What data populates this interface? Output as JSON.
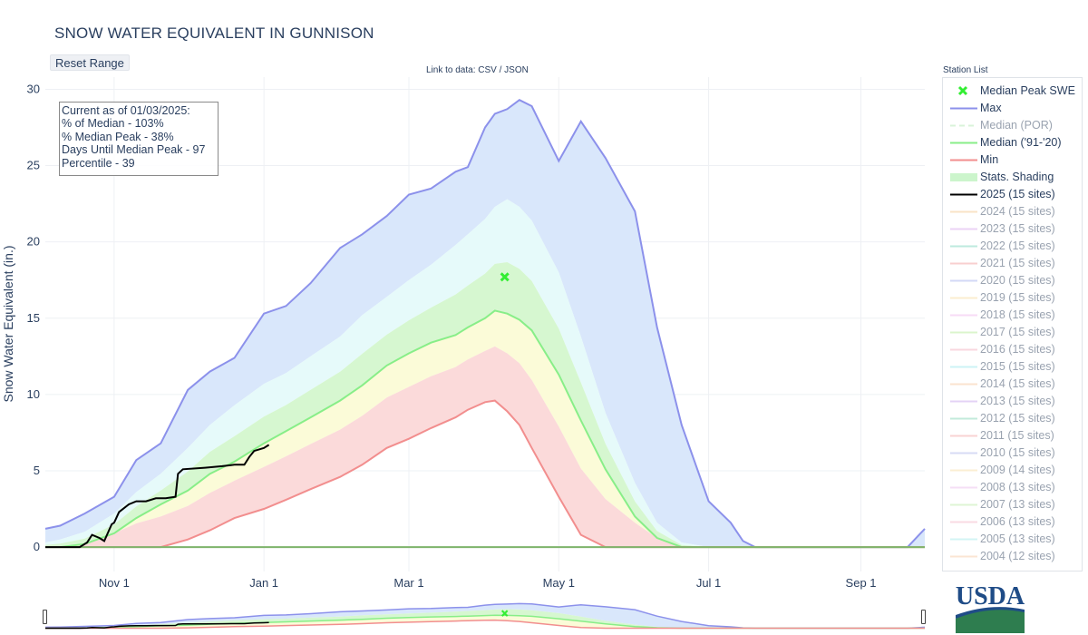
{
  "title": "SNOW WATER EQUIVALENT IN GUNNISON",
  "reset_label": "Reset Range",
  "link_prefix": "Link to data:",
  "link_csv": "CSV",
  "link_sep": "/",
  "link_json": "JSON",
  "station_list_label": "Station List",
  "info_box": {
    "line1": "Current as of 01/03/2025:",
    "line2": "% of Median - 103%",
    "line3": "% Median Peak - 38%",
    "line4": "Days Until Median Peak - 97",
    "line5": "Percentile - 39"
  },
  "legend": [
    {
      "label": "Median Peak SWE",
      "color": "#33ee33",
      "style": "marker",
      "active": true
    },
    {
      "label": "Max",
      "color": "#8c91eb",
      "style": "line",
      "active": true
    },
    {
      "label": "Median (POR)",
      "color": "#b5e8b5",
      "style": "dash",
      "active": false
    },
    {
      "label": "Median ('91-'20)",
      "color": "#88ee88",
      "style": "line",
      "active": true
    },
    {
      "label": "Min",
      "color": "#f28e8e",
      "style": "line",
      "active": true
    },
    {
      "label": "Stats. Shading",
      "color": "#ccf5cc",
      "style": "band",
      "active": true
    },
    {
      "label": "2025 (15 sites)",
      "color": "#000000",
      "style": "line",
      "active": true
    },
    {
      "label": "2024 (15 sites)",
      "color": "#f5c88e",
      "style": "line",
      "active": false
    },
    {
      "label": "2023 (15 sites)",
      "color": "#d8a8ef",
      "style": "line",
      "active": false
    },
    {
      "label": "2022 (15 sites)",
      "color": "#7fd6be",
      "style": "line",
      "active": false
    },
    {
      "label": "2021 (15 sites)",
      "color": "#f2a0a0",
      "style": "line",
      "active": false
    },
    {
      "label": "2020 (15 sites)",
      "color": "#a8b2ef",
      "style": "line",
      "active": false
    },
    {
      "label": "2019 (15 sites)",
      "color": "#f8dca0",
      "style": "line",
      "active": false
    },
    {
      "label": "2018 (15 sites)",
      "color": "#f0b8ef",
      "style": "line",
      "active": false
    },
    {
      "label": "2017 (15 sites)",
      "color": "#b8ec9a",
      "style": "line",
      "active": false
    },
    {
      "label": "2016 (15 sites)",
      "color": "#f5b0c0",
      "style": "line",
      "active": false
    },
    {
      "label": "2015 (15 sites)",
      "color": "#9ae8ec",
      "style": "line",
      "active": false
    },
    {
      "label": "2014 (15 sites)",
      "color": "#f8c8a0",
      "style": "line",
      "active": false
    },
    {
      "label": "2013 (15 sites)",
      "color": "#cba8ef",
      "style": "line",
      "active": false
    },
    {
      "label": "2012 (15 sites)",
      "color": "#88d8b8",
      "style": "line",
      "active": false
    },
    {
      "label": "2011 (15 sites)",
      "color": "#f2a8a8",
      "style": "line",
      "active": false
    },
    {
      "label": "2010 (15 sites)",
      "color": "#b0b8ec",
      "style": "line",
      "active": false
    },
    {
      "label": "2009 (14 sites)",
      "color": "#f8e0a8",
      "style": "line",
      "active": false
    },
    {
      "label": "2008 (13 sites)",
      "color": "#ecc0ef",
      "style": "line",
      "active": false
    },
    {
      "label": "2007 (13 sites)",
      "color": "#c0ecaa",
      "style": "line",
      "active": false
    },
    {
      "label": "2006 (13 sites)",
      "color": "#f5b8c8",
      "style": "line",
      "active": false
    },
    {
      "label": "2005 (13 sites)",
      "color": "#a8eaec",
      "style": "line",
      "active": false
    },
    {
      "label": "2004 (12 sites)",
      "color": "#f8cca8",
      "style": "line",
      "active": false
    }
  ],
  "colors": {
    "max": "#8c91eb",
    "median": "#88ee88",
    "min": "#f28e8e",
    "current": "#000000",
    "band_blue": "#d9e7fb",
    "band_cyan": "#e6fafa",
    "band_green": "#d6f7d0",
    "band_yellow": "#fbfbd8",
    "band_red": "#fbdada",
    "usda_blue": "#1f4c87",
    "usda_green": "#2e7d4f"
  },
  "logo_text": "USDA",
  "chart_data": {
    "type": "area",
    "title": "SNOW WATER EQUIVALENT IN GUNNISON",
    "ylabel": "Snow Water Equivalent (in.)",
    "xlabel": "",
    "ylim": [
      -1.6,
      30.8
    ],
    "xlim": [
      "2024-10-04",
      "2025-09-27"
    ],
    "yticks": [
      0,
      5,
      10,
      15,
      20,
      25,
      30
    ],
    "xticks": [
      {
        "date": "2024-11-01",
        "label": "Nov  1"
      },
      {
        "date": "2025-01-01",
        "label": "Jan  1"
      },
      {
        "date": "2025-03-01",
        "label": "Mar  1"
      },
      {
        "date": "2025-05-01",
        "label": "May  1"
      },
      {
        "date": "2025-07-01",
        "label": "Jul  1"
      },
      {
        "date": "2025-09-01",
        "label": "Sep  1"
      }
    ],
    "grid": true,
    "legend_position": "right",
    "dates": [
      "2024-10-04",
      "2024-10-10",
      "2024-10-20",
      "2024-11-01",
      "2024-11-10",
      "2024-11-20",
      "2024-12-01",
      "2024-12-10",
      "2024-12-20",
      "2025-01-01",
      "2025-01-10",
      "2025-01-20",
      "2025-02-01",
      "2025-02-10",
      "2025-02-20",
      "2025-03-01",
      "2025-03-10",
      "2025-03-20",
      "2025-03-25",
      "2025-04-01",
      "2025-04-05",
      "2025-04-10",
      "2025-04-15",
      "2025-04-20",
      "2025-05-01",
      "2025-05-10",
      "2025-05-20",
      "2025-06-01",
      "2025-06-10",
      "2025-06-20",
      "2025-07-01",
      "2025-07-10",
      "2025-07-15",
      "2025-07-20",
      "2025-08-01",
      "2025-08-15",
      "2025-09-01",
      "2025-09-10",
      "2025-09-20",
      "2025-09-27"
    ],
    "series": [
      {
        "name": "Max",
        "values": [
          1.2,
          1.4,
          2.2,
          3.3,
          5.7,
          6.8,
          10.3,
          11.5,
          12.4,
          15.3,
          15.8,
          17.3,
          19.6,
          20.5,
          21.7,
          23.1,
          23.5,
          24.6,
          24.9,
          27.5,
          28.4,
          28.7,
          29.3,
          28.9,
          25.3,
          27.9,
          25.5,
          22.0,
          14.4,
          8.0,
          3.0,
          1.6,
          0.4,
          0.0,
          0.0,
          0.0,
          0.0,
          0.0,
          0.0,
          1.2
        ]
      },
      {
        "name": "Median ('91-'20)",
        "values": [
          0.0,
          0.0,
          0.2,
          0.9,
          1.9,
          2.8,
          3.7,
          4.8,
          5.6,
          6.8,
          7.6,
          8.5,
          9.6,
          10.6,
          11.9,
          12.7,
          13.4,
          13.9,
          14.4,
          15.0,
          15.5,
          15.3,
          14.9,
          14.2,
          11.3,
          8.3,
          5.1,
          2.0,
          0.6,
          0.0,
          0.0,
          0.0,
          0.0,
          0.0,
          0.0,
          0.0,
          0.0,
          0.0,
          0.0,
          0.0
        ]
      },
      {
        "name": "Min",
        "values": [
          0.0,
          0.0,
          0.0,
          0.0,
          0.0,
          0.0,
          0.5,
          1.1,
          1.9,
          2.5,
          3.1,
          3.8,
          4.6,
          5.4,
          6.5,
          7.1,
          7.8,
          8.5,
          9.0,
          9.5,
          9.6,
          8.9,
          8.0,
          6.5,
          3.3,
          0.8,
          0.0,
          0.0,
          0.0,
          0.0,
          0.0,
          0.0,
          0.0,
          0.0,
          0.0,
          0.0,
          0.0,
          0.0,
          0.0,
          0.0
        ]
      },
      {
        "name": "Stats. Shading (upper)",
        "values": [
          0.3,
          0.5,
          1.0,
          2.2,
          3.6,
          4.8,
          6.5,
          8.0,
          9.3,
          10.7,
          11.4,
          12.5,
          13.8,
          15.2,
          16.4,
          17.5,
          18.5,
          19.8,
          20.5,
          21.5,
          22.3,
          22.8,
          22.3,
          21.4,
          18.0,
          13.8,
          8.8,
          4.2,
          1.6,
          0.3,
          0.0,
          0.0,
          0.0,
          0.0,
          0.0,
          0.0,
          0.0,
          0.0,
          0.0,
          0.0
        ]
      }
    ],
    "current_2025": {
      "name": "2025 (15 sites)",
      "dates": [
        "2024-10-04",
        "2024-10-18",
        "2024-10-21",
        "2024-10-23",
        "2024-10-26",
        "2024-10-28",
        "2024-10-31",
        "2024-11-01",
        "2024-11-03",
        "2024-11-07",
        "2024-11-10",
        "2024-11-14",
        "2024-11-18",
        "2024-11-22",
        "2024-11-26",
        "2024-11-27",
        "2024-11-29",
        "2024-12-08",
        "2024-12-15",
        "2024-12-20",
        "2024-12-24",
        "2024-12-26",
        "2024-12-28",
        "2025-01-01",
        "2025-01-03"
      ],
      "values": [
        0.0,
        0.0,
        0.3,
        0.8,
        0.6,
        0.4,
        1.5,
        1.6,
        2.3,
        2.8,
        3.0,
        3.0,
        3.2,
        3.2,
        3.3,
        4.8,
        5.1,
        5.2,
        5.3,
        5.4,
        5.4,
        5.9,
        6.3,
        6.5,
        6.7
      ]
    },
    "median_peak_swe": {
      "date": "2025-04-09",
      "value": 17.7
    }
  }
}
